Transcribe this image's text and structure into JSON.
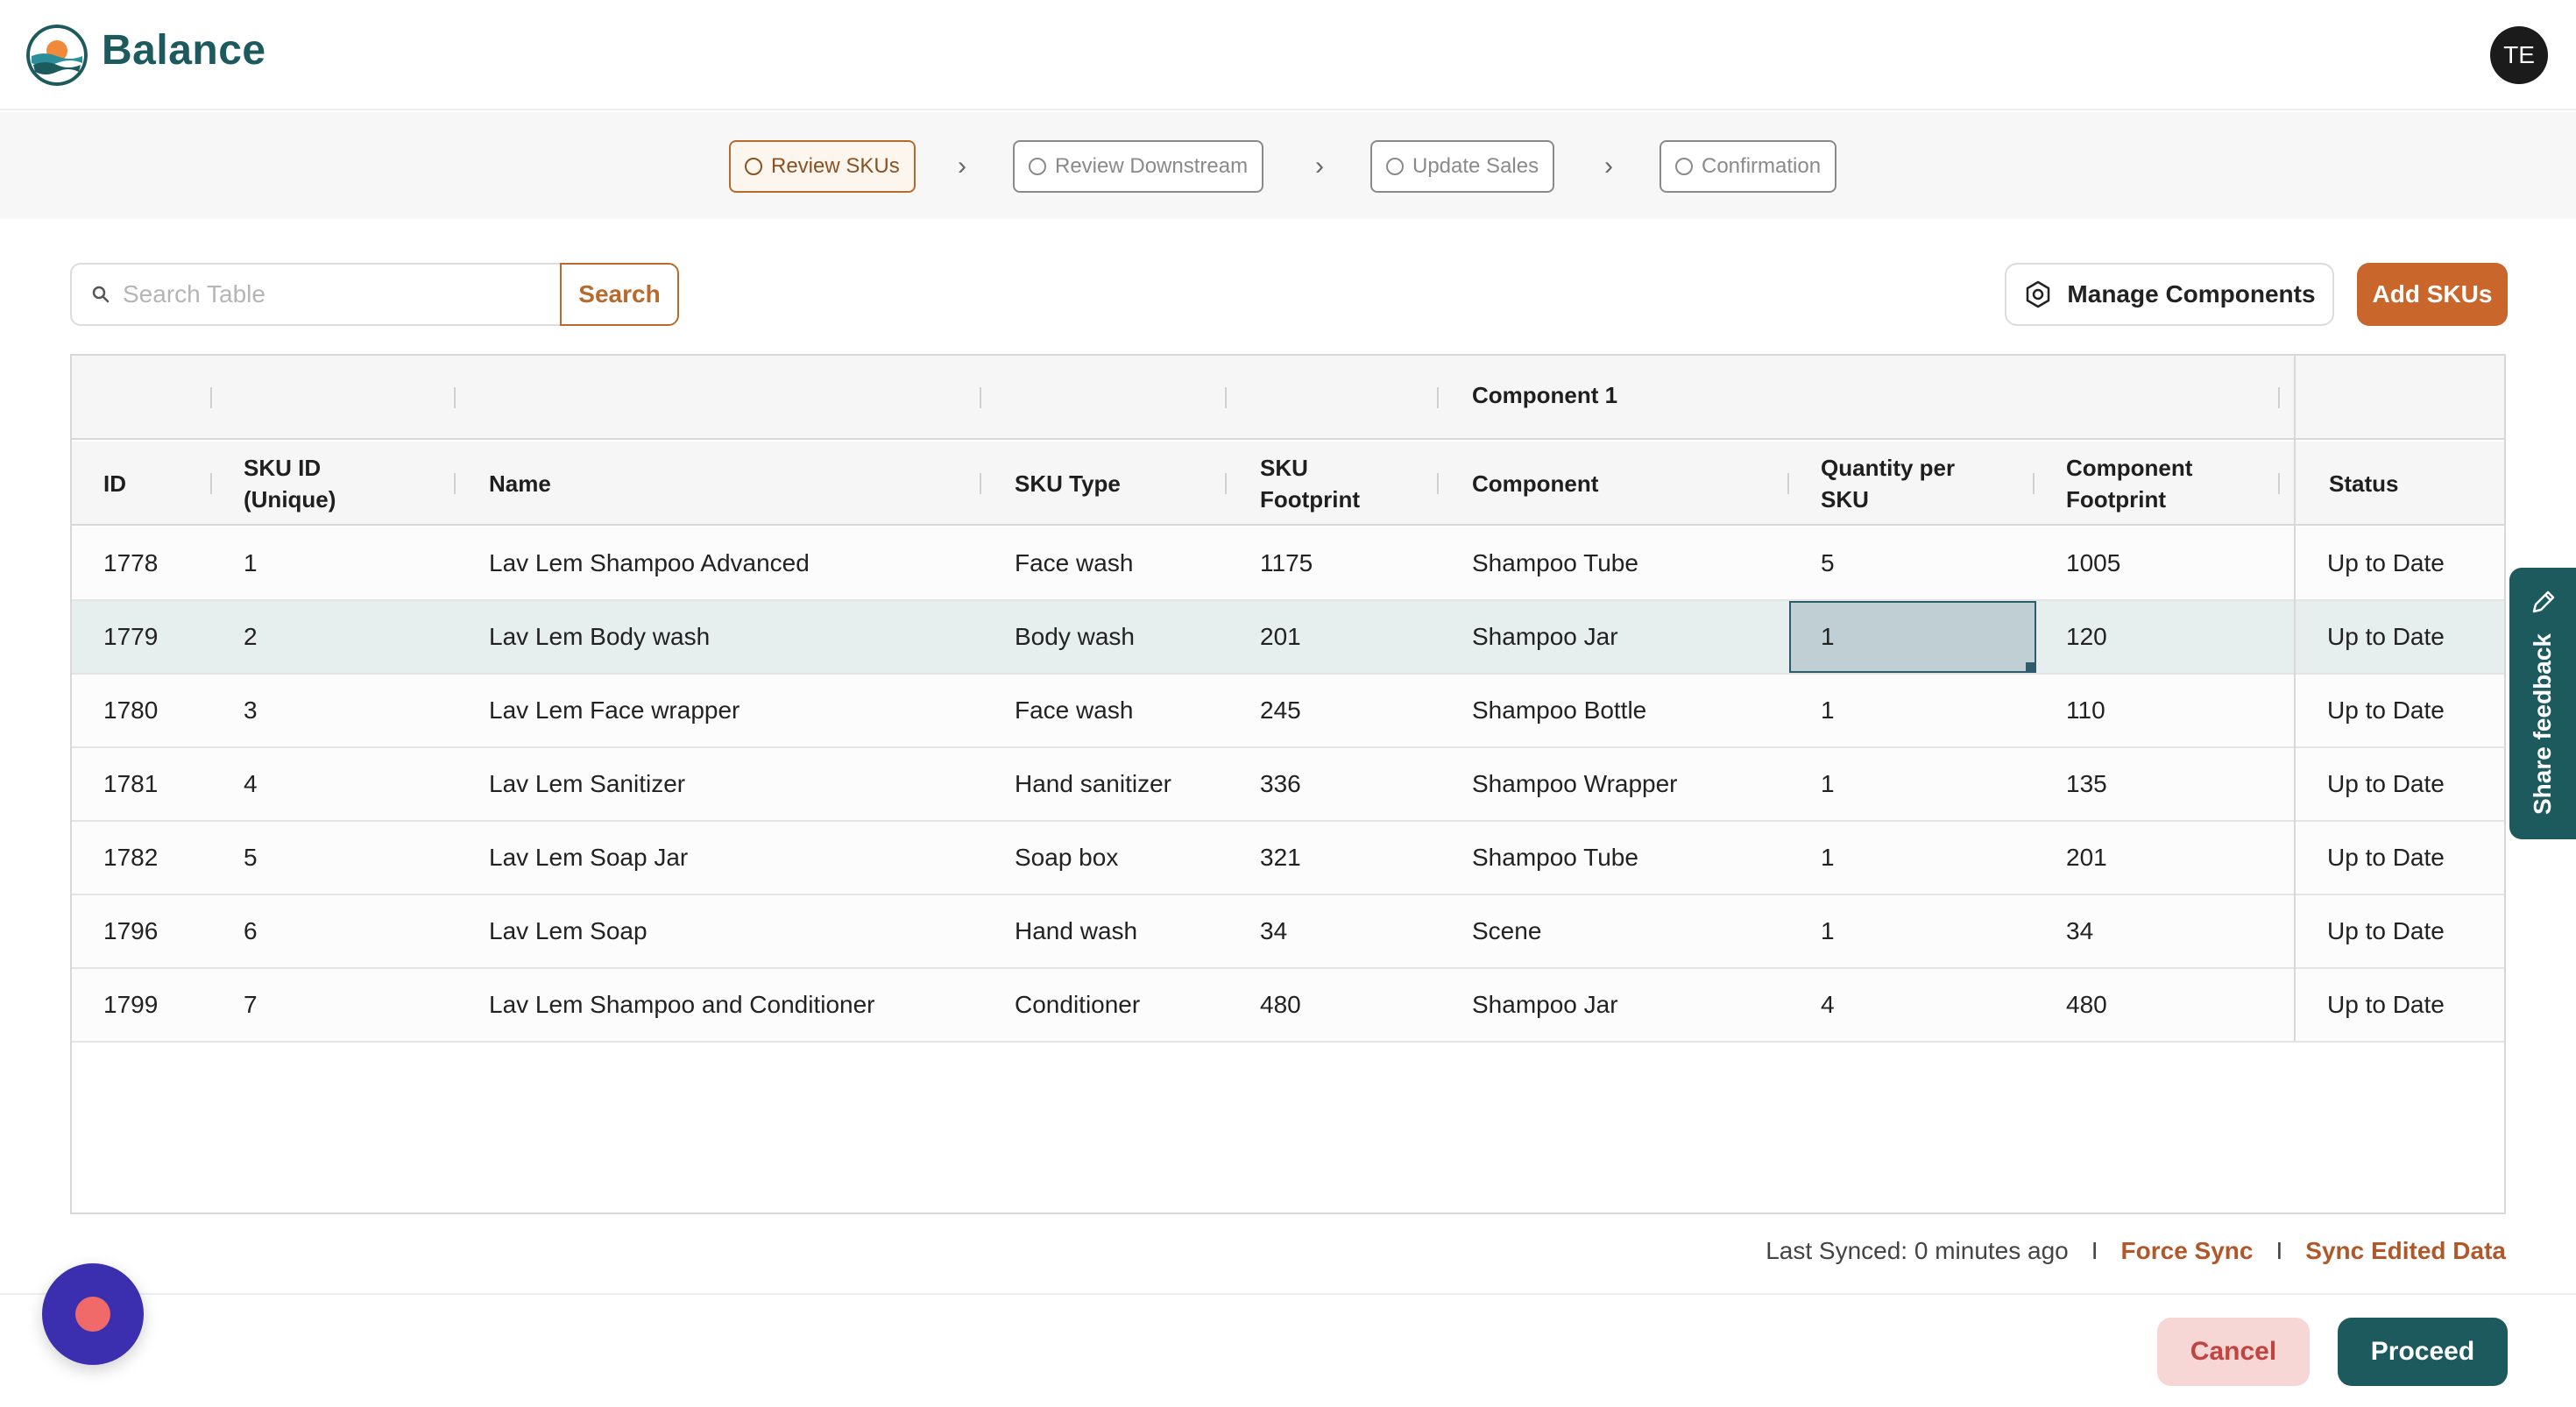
{
  "app": {
    "brand": "Balance",
    "avatar_initials": "TE"
  },
  "stepper": {
    "steps": [
      {
        "label": "Review SKUs",
        "active": true
      },
      {
        "label": "Review Downstream",
        "active": false
      },
      {
        "label": "Update Sales",
        "active": false
      },
      {
        "label": "Confirmation",
        "active": false
      }
    ]
  },
  "toolbar": {
    "search_placeholder": "Search Table",
    "search_value": "",
    "search_button": "Search",
    "manage_components": "Manage Components",
    "add_skus": "Add SKUs"
  },
  "table": {
    "group_header": "Component 1",
    "columns": {
      "id": "ID",
      "sku_id_line1": "SKU ID",
      "sku_id_line2": "(Unique)",
      "name": "Name",
      "sku_type": "SKU Type",
      "sku_footprint_line1": "SKU",
      "sku_footprint_line2": "Footprint",
      "component": "Component",
      "qty_line1": "Quantity per",
      "qty_line2": "SKU",
      "comp_footprint_line1": "Component",
      "comp_footprint_line2": "Footprint",
      "status": "Status"
    },
    "rows": [
      {
        "id": "1778",
        "sku_id": "1",
        "name": "Lav Lem Shampoo Advanced",
        "sku_type": "Face wash",
        "sku_footprint": "1175",
        "component": "Shampoo Tube",
        "qty": "5",
        "comp_footprint": "1005",
        "status": "Up to Date"
      },
      {
        "id": "1779",
        "sku_id": "2",
        "name": "Lav Lem Body wash",
        "sku_type": "Body wash",
        "sku_footprint": "201",
        "component": "Shampoo Jar",
        "qty": "1",
        "comp_footprint": "120",
        "status": "Up to Date"
      },
      {
        "id": "1780",
        "sku_id": "3",
        "name": "Lav Lem Face wrapper",
        "sku_type": "Face wash",
        "sku_footprint": "245",
        "component": "Shampoo Bottle",
        "qty": "1",
        "comp_footprint": "110",
        "status": "Up to Date"
      },
      {
        "id": "1781",
        "sku_id": "4",
        "name": "Lav Lem Sanitizer",
        "sku_type": "Hand sanitizer",
        "sku_footprint": "336",
        "component": "Shampoo Wrapper",
        "qty": "1",
        "comp_footprint": "135",
        "status": "Up to Date"
      },
      {
        "id": "1782",
        "sku_id": "5",
        "name": "Lav Lem Soap Jar",
        "sku_type": "Soap box",
        "sku_footprint": "321",
        "component": "Shampoo Tube",
        "qty": "1",
        "comp_footprint": "201",
        "status": "Up to Date"
      },
      {
        "id": "1796",
        "sku_id": "6",
        "name": "Lav Lem Soap",
        "sku_type": "Hand wash",
        "sku_footprint": "34",
        "component": "Scene",
        "qty": "1",
        "comp_footprint": "34",
        "status": "Up to Date"
      },
      {
        "id": "1799",
        "sku_id": "7",
        "name": "Lav Lem Shampoo and Conditioner",
        "sku_type": "Conditioner",
        "sku_footprint": "480",
        "component": "Shampoo Jar",
        "qty": "4",
        "comp_footprint": "480",
        "status": "Up to Date"
      }
    ]
  },
  "feedback": {
    "label": "Share feedback"
  },
  "footer": {
    "last_synced": "Last Synced: 0 minutes ago",
    "separator": "I",
    "force_sync": "Force Sync",
    "sync_edited": "Sync Edited Data",
    "cancel": "Cancel",
    "proceed": "Proceed"
  },
  "colors": {
    "brand": "#1d5a5d",
    "accent": "#c9662c",
    "selected_row": "#e6eeee",
    "cancel_bg": "#f7d6d6"
  }
}
